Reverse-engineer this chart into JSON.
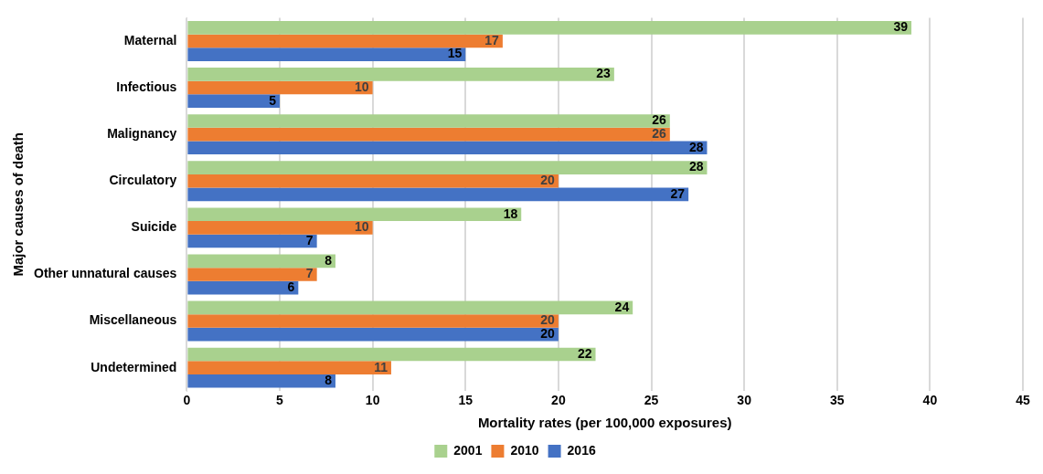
{
  "chart_data": {
    "type": "bar",
    "orientation": "horizontal",
    "xlabel": "Mortality rates (per 100,000 exposures)",
    "ylabel": "Major causes of death",
    "categories": [
      "Maternal",
      "Infectious",
      "Malignancy",
      "Circulatory",
      "Suicide",
      "Other unnatural causes",
      "Miscellaneous",
      "Undetermined"
    ],
    "series": [
      {
        "name": "2001",
        "color": "#a9d18e",
        "values": [
          39,
          23,
          26,
          28,
          18,
          8,
          24,
          22
        ]
      },
      {
        "name": "2010",
        "color": "#ed7d31",
        "values": [
          17,
          10,
          26,
          20,
          10,
          7,
          20,
          11
        ]
      },
      {
        "name": "2016",
        "color": "#4472c4",
        "values": [
          15,
          5,
          28,
          27,
          7,
          6,
          20,
          8
        ]
      }
    ],
    "xlim": [
      0,
      45
    ],
    "xticks": [
      0,
      5,
      10,
      15,
      20,
      25,
      30,
      35,
      40,
      45
    ],
    "grid": "x",
    "legend": "bottom",
    "data_labels": true
  }
}
